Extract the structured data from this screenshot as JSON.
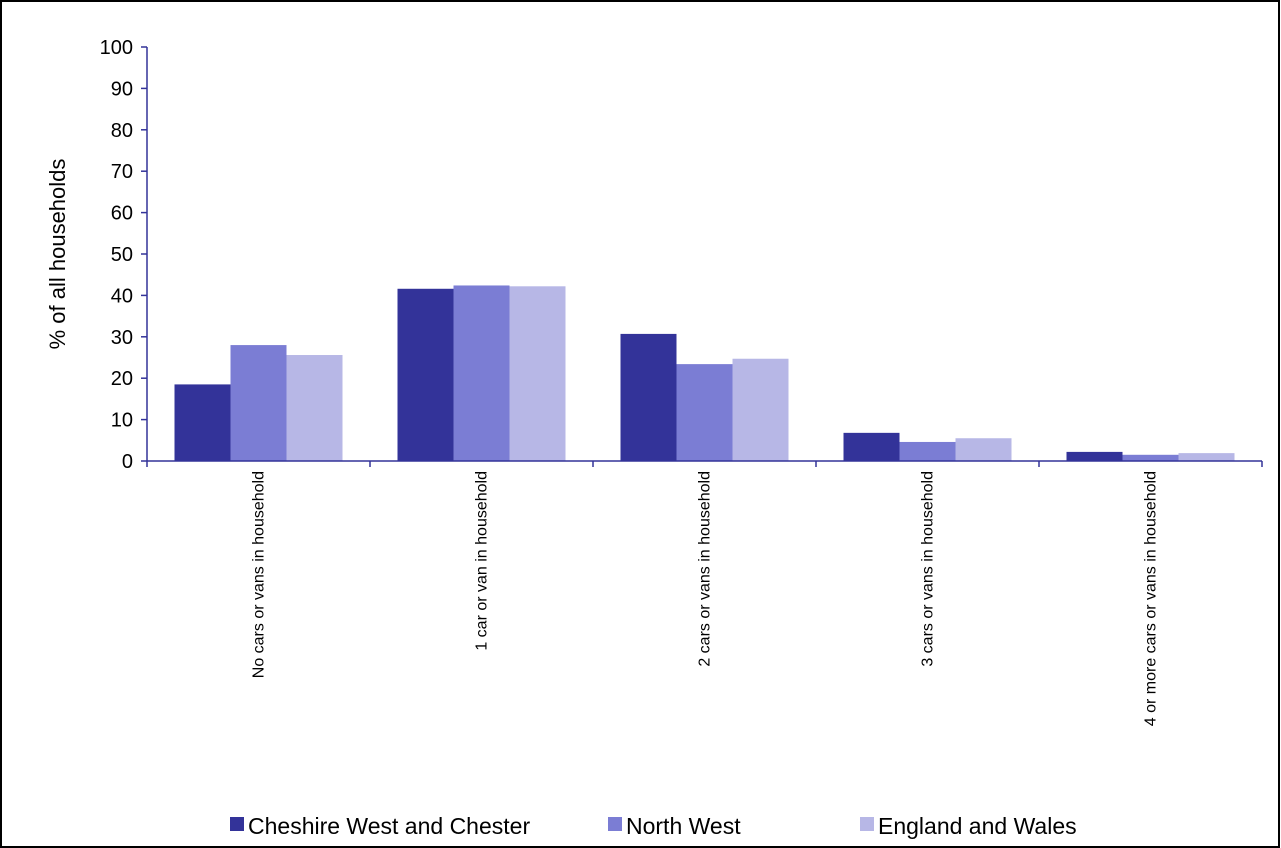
{
  "chart_data": {
    "type": "bar",
    "title": "",
    "xlabel": "",
    "ylabel": "% of all households",
    "ylim": [
      0,
      100
    ],
    "yticks": [
      0,
      10,
      20,
      30,
      40,
      50,
      60,
      70,
      80,
      90,
      100
    ],
    "grid": false,
    "legend_position": "bottom",
    "categories": [
      "No cars or vans in household",
      "1 car or van in household",
      "2 cars or vans in household",
      "3 cars or vans in household",
      "4 or more cars or vans in household"
    ],
    "series": [
      {
        "name": "Cheshire West and Chester",
        "color": "#333399",
        "values": [
          18.5,
          41.6,
          30.7,
          6.8,
          2.2
        ]
      },
      {
        "name": "North West",
        "color": "#7b7dd4",
        "values": [
          28.0,
          42.4,
          23.4,
          4.6,
          1.5
        ]
      },
      {
        "name": "England and Wales",
        "color": "#b7b7e6",
        "values": [
          25.6,
          42.2,
          24.7,
          5.5,
          1.9
        ]
      }
    ],
    "axis_color": "#333399"
  }
}
